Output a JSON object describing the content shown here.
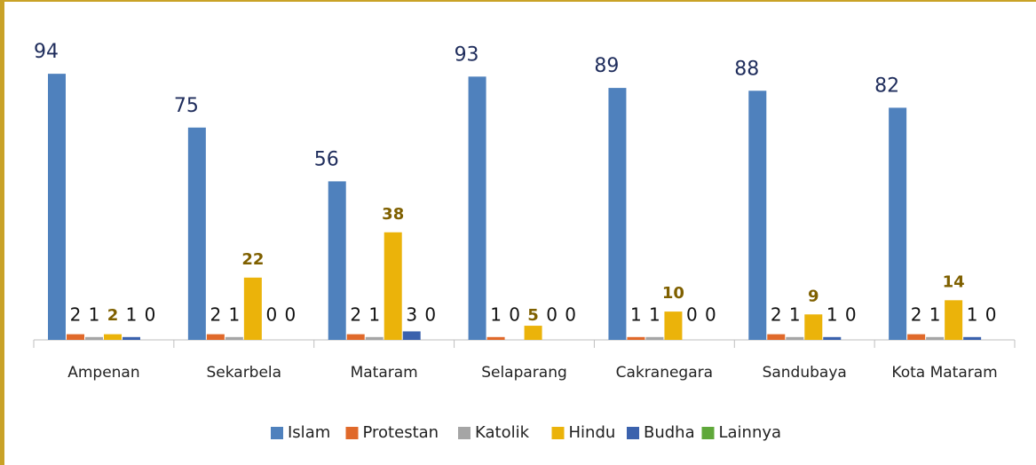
{
  "chart_data": {
    "type": "bar",
    "categories": [
      "Ampenan",
      "Sekarbela",
      "Mataram",
      "Selaparang",
      "Cakranegara",
      "Sandubaya",
      "Kota Mataram"
    ],
    "series": [
      {
        "name": "Islam",
        "color": "#4f81bd",
        "label_color": "#1f2d5c",
        "values": [
          94,
          75,
          56,
          93,
          89,
          88,
          82
        ]
      },
      {
        "name": "Protestan",
        "color": "#e0692a",
        "label_color": "#111111",
        "values": [
          2,
          2,
          2,
          1,
          1,
          2,
          2
        ]
      },
      {
        "name": "Katolik",
        "color": "#a5a5a5",
        "label_color": "#111111",
        "values": [
          1,
          1,
          1,
          0,
          1,
          1,
          1
        ]
      },
      {
        "name": "Hindu",
        "color": "#ebb30a",
        "label_color": "#7f6000",
        "values": [
          2,
          22,
          38,
          5,
          10,
          9,
          14
        ]
      },
      {
        "name": "Budha",
        "color": "#3b62ad",
        "label_color": "#111111",
        "values": [
          1,
          0,
          3,
          0,
          0,
          1,
          1
        ]
      },
      {
        "name": "Lainnya",
        "color": "#5fa83a",
        "label_color": "#111111",
        "values": [
          0,
          0,
          0,
          0,
          0,
          0,
          0
        ]
      }
    ],
    "legend": "bottom"
  }
}
